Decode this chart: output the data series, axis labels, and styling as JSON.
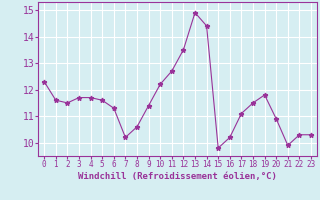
{
  "x": [
    0,
    1,
    2,
    3,
    4,
    5,
    6,
    7,
    8,
    9,
    10,
    11,
    12,
    13,
    14,
    15,
    16,
    17,
    18,
    19,
    20,
    21,
    22,
    23
  ],
  "y": [
    12.3,
    11.6,
    11.5,
    11.7,
    11.7,
    11.6,
    11.3,
    10.2,
    10.6,
    11.4,
    12.2,
    12.7,
    13.5,
    14.9,
    14.4,
    9.8,
    10.2,
    11.1,
    11.5,
    11.8,
    10.9,
    9.9,
    10.3,
    10.3
  ],
  "line_color": "#993399",
  "marker": "*",
  "marker_size": 3.5,
  "bg_color": "#d6eef2",
  "grid_color": "#ffffff",
  "xlabel": "Windchill (Refroidissement éolien,°C)",
  "xlabel_color": "#993399",
  "tick_color": "#993399",
  "ylim": [
    9.5,
    15.3
  ],
  "xlim": [
    -0.5,
    23.5
  ],
  "yticks": [
    10,
    11,
    12,
    13,
    14,
    15
  ],
  "xticks": [
    0,
    1,
    2,
    3,
    4,
    5,
    6,
    7,
    8,
    9,
    10,
    11,
    12,
    13,
    14,
    15,
    16,
    17,
    18,
    19,
    20,
    21,
    22,
    23
  ],
  "ylabel_fontsize": 7,
  "xlabel_fontsize": 6.5,
  "xtick_fontsize": 5.5,
  "ytick_fontsize": 7
}
